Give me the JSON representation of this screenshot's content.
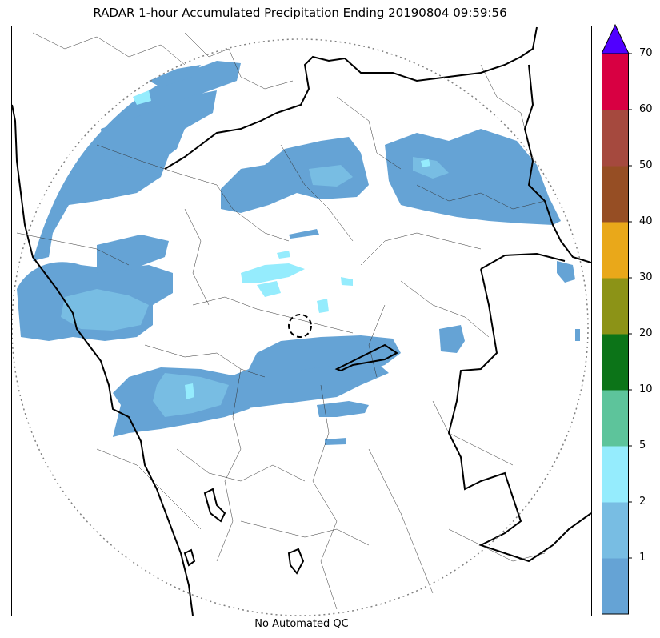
{
  "title": "RADAR 1-hour Accumulated Precipitation Ending 20190804 09:59:56",
  "footer": "No Automated QC",
  "colorbar": {
    "levels": [
      {
        "label": "",
        "color": "#65a3d5"
      },
      {
        "label": "1",
        "color": "#78bde3"
      },
      {
        "label": "2",
        "color": "#95ecfd"
      },
      {
        "label": "5",
        "color": "#5dc49b"
      },
      {
        "label": "10",
        "color": "#0c7418"
      },
      {
        "label": "20",
        "color": "#8c9317"
      },
      {
        "label": "30",
        "color": "#e9a81a"
      },
      {
        "label": "40",
        "color": "#964e24"
      },
      {
        "label": "50",
        "color": "#a5493e"
      },
      {
        "label": "60",
        "color": "#d80042"
      },
      {
        "label": "70",
        "color": "#5000ff"
      }
    ],
    "overflow_color": "#5000ff"
  },
  "map": {
    "precip_light_color": "#65a3d5",
    "precip_mid_color": "#78bde3",
    "precip_heavy_color": "#95ecfd",
    "border_color": "#000000",
    "range_ring_color": "#808080"
  }
}
